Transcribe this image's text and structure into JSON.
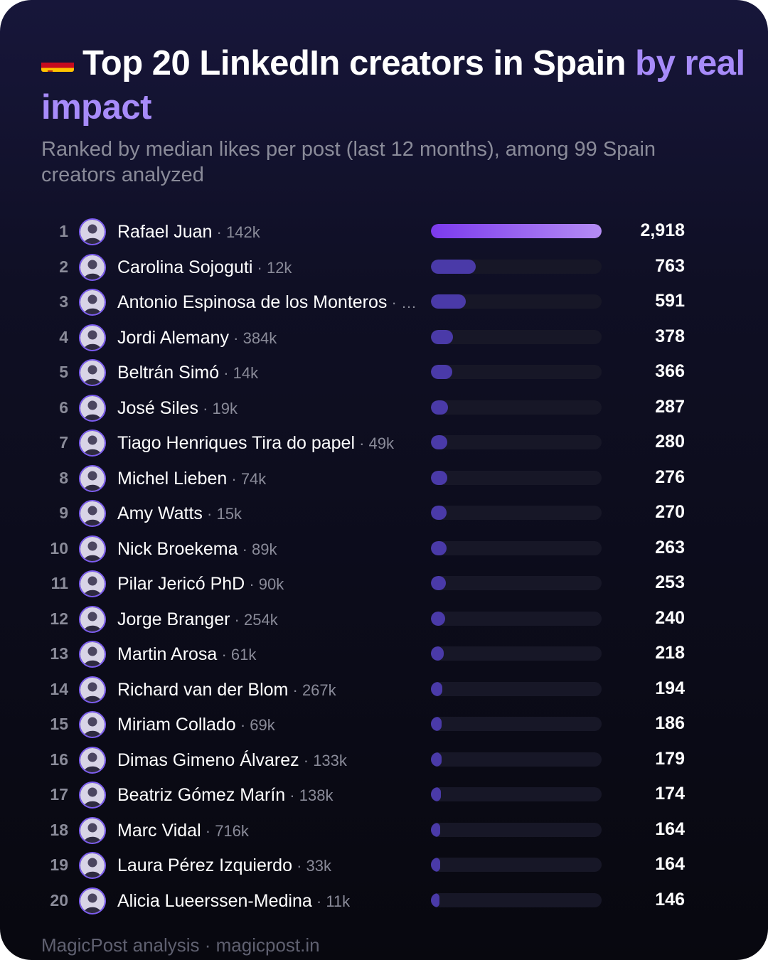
{
  "header": {
    "title_main": "Top 20 LinkedIn creators in Spain ",
    "title_highlight": "by real impact",
    "subtitle": "Ranked by median likes per post (last 12 months), among 99 Spain creators analyzed"
  },
  "colors": {
    "accent": "#a78bfa",
    "bar_top_start": "#7c3aed",
    "bar_top_end": "#b48cf4",
    "bar_other": "#4a3aa8",
    "track": "#171727"
  },
  "chart_data": {
    "type": "bar",
    "orientation": "horizontal",
    "title": "Top 20 LinkedIn creators in Spain by real impact",
    "categories": [
      "Rafael Juan",
      "Carolina Sojoguti",
      "Antonio Espinosa de los Monteros",
      "Jordi Alemany",
      "Beltrán Simó",
      "José Siles",
      "Tiago Henriques Tira do papel",
      "Michel Lieben",
      "Amy Watts",
      "Nick Broekema",
      "Pilar Jericó PhD",
      "Jorge Branger",
      "Martin Arosa",
      "Richard van der Blom",
      "Miriam Collado",
      "Dimas Gimeno Álvarez",
      "Beatriz Gómez Marín",
      "Marc Vidal",
      "Laura Pérez Izquierdo",
      "Alicia Lueerssen-Medina"
    ],
    "values": [
      2918,
      763,
      591,
      378,
      366,
      287,
      280,
      276,
      270,
      263,
      253,
      240,
      218,
      194,
      186,
      179,
      174,
      164,
      164,
      146
    ],
    "value_labels": [
      "2,918",
      "763",
      "591",
      "378",
      "366",
      "287",
      "280",
      "276",
      "270",
      "263",
      "253",
      "240",
      "218",
      "194",
      "186",
      "179",
      "174",
      "164",
      "164",
      "146"
    ],
    "followers": [
      "142k",
      "12k",
      "…",
      "384k",
      "14k",
      "19k",
      "49k",
      "74k",
      "15k",
      "89k",
      "90k",
      "254k",
      "61k",
      "267k",
      "69k",
      "133k",
      "138k",
      "716k",
      "33k",
      "11k"
    ],
    "xlim": [
      0,
      2918
    ],
    "grid": false,
    "legend": "none"
  },
  "footer": "MagicPost analysis · magicpost.in"
}
